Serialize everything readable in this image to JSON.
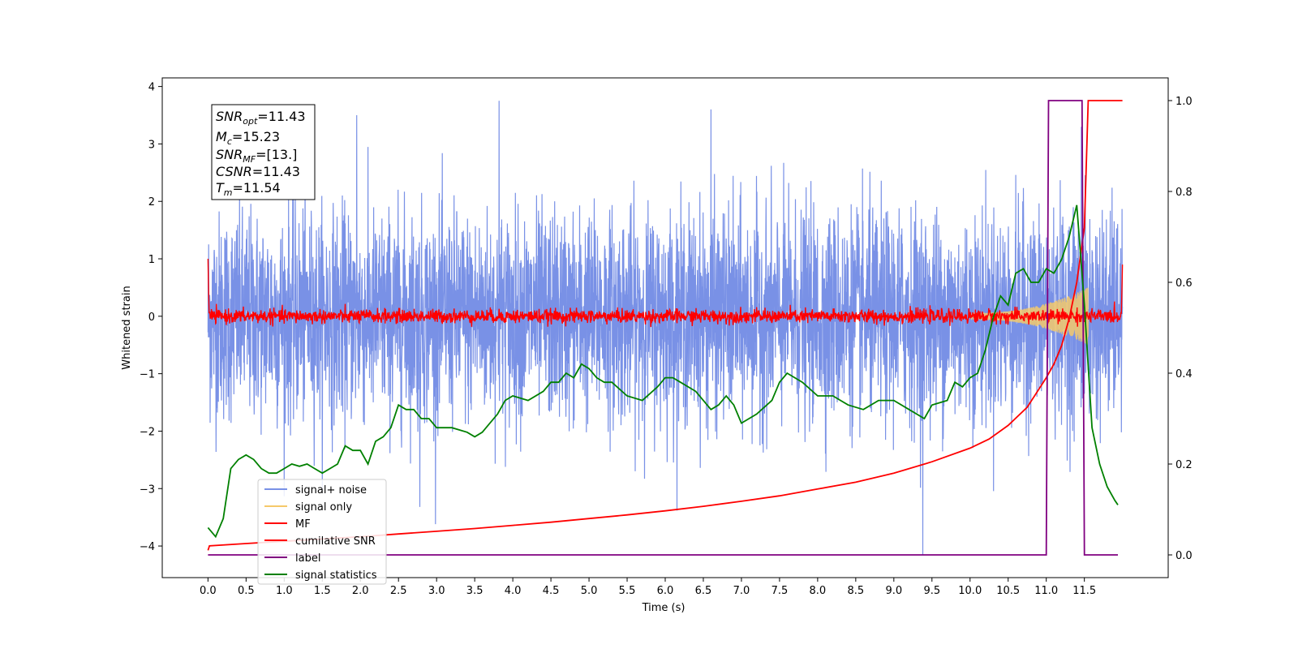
{
  "chart_data": {
    "type": "line",
    "xlabel": "Time (s)",
    "ylabel": "Whitened strain",
    "xlim": [
      -0.6,
      12.6
    ],
    "ylim": [
      -4.55,
      4.15
    ],
    "y2lim": [
      -0.05,
      1.05
    ],
    "xticks": [
      "0.0",
      "0.5",
      "1.0",
      "1.5",
      "2.0",
      "2.5",
      "3.0",
      "3.5",
      "4.0",
      "4.5",
      "5.0",
      "5.5",
      "6.0",
      "6.5",
      "7.0",
      "7.5",
      "8.0",
      "8.5",
      "9.0",
      "9.5",
      "10.0",
      "10.5",
      "11.0",
      "11.5"
    ],
    "xtick_values": [
      0.0,
      0.5,
      1.0,
      1.5,
      2.0,
      2.5,
      3.0,
      3.5,
      4.0,
      4.5,
      5.0,
      5.5,
      6.0,
      6.5,
      7.0,
      7.5,
      8.0,
      8.5,
      9.0,
      9.5,
      10.0,
      10.5,
      11.0,
      11.5
    ],
    "yticks": [
      "4",
      "3",
      "2",
      "1",
      "0",
      "−1",
      "−2",
      "−3",
      "−4"
    ],
    "ytick_values": [
      4,
      3,
      2,
      1,
      0,
      -1,
      -2,
      -3,
      -4
    ],
    "y2ticks": [
      "1.0",
      "0.8",
      "0.6",
      "0.4",
      "0.2",
      "0.0"
    ],
    "y2tick_values": [
      1.0,
      0.8,
      0.6,
      0.4,
      0.2,
      0.0
    ],
    "legend_position": "lower-left",
    "grid": false,
    "stats_box": {
      "snr_opt": "=11.43",
      "mc": "=15.23",
      "snr_mf": "=[13.]",
      "csnr": "=11.43",
      "tm": "=11.54"
    },
    "series": [
      {
        "name": "signal+ noise",
        "color": "#7991e6",
        "axis": "left",
        "style": "noise",
        "x_range": [
          0.0,
          12.0
        ],
        "envelope_typical": 1.5,
        "envelope_peak": 3.75,
        "spikes": [
          [
            3.82,
            3.75
          ],
          [
            9.38,
            -4.15
          ],
          [
            2.78,
            -3.32
          ],
          [
            11.46,
            3.3
          ],
          [
            1.95,
            3.5
          ],
          [
            6.6,
            3.6
          ]
        ]
      },
      {
        "name": "signal only",
        "color": "#f5c96a",
        "axis": "left",
        "style": "chirp",
        "x_range": [
          10.0,
          11.55
        ],
        "amplitude_max": 0.45
      },
      {
        "name": "MF",
        "color": "#ff0000",
        "axis": "left",
        "style": "mf",
        "x_range": [
          0.0,
          12.0
        ],
        "baseline": 0.0,
        "noise_amplitude": 0.12,
        "end_values": [
          1.0,
          0.9
        ]
      },
      {
        "name": "cumilative SNR",
        "color": "#ff0000",
        "axis": "right",
        "x": [
          0.0,
          0.02,
          0.5,
          1.0,
          1.5,
          2.0,
          2.5,
          3.0,
          3.5,
          4.0,
          4.5,
          5.0,
          5.5,
          6.0,
          6.5,
          7.0,
          7.5,
          8.0,
          8.5,
          9.0,
          9.5,
          10.0,
          10.25,
          10.5,
          10.75,
          11.0,
          11.1,
          11.2,
          11.3,
          11.4,
          11.5,
          11.55,
          12.0
        ],
        "values": [
          0.01,
          0.02,
          0.025,
          0.03,
          0.035,
          0.04,
          0.046,
          0.052,
          0.058,
          0.065,
          0.072,
          0.08,
          0.088,
          0.097,
          0.107,
          0.118,
          0.13,
          0.145,
          0.16,
          0.18,
          0.205,
          0.235,
          0.255,
          0.285,
          0.325,
          0.39,
          0.42,
          0.46,
          0.52,
          0.6,
          0.72,
          1.0,
          1.0
        ]
      },
      {
        "name": "label",
        "color": "#800080",
        "axis": "right",
        "x": [
          0.0,
          11.0,
          11.03,
          11.47,
          11.5,
          11.94
        ],
        "values": [
          0.0,
          0.0,
          1.0,
          1.0,
          0.0,
          0.0
        ]
      },
      {
        "name": "signal statistics",
        "color": "#008000",
        "axis": "right",
        "x": [
          0.0,
          0.1,
          0.2,
          0.3,
          0.4,
          0.5,
          0.6,
          0.7,
          0.8,
          0.9,
          1.0,
          1.1,
          1.2,
          1.3,
          1.4,
          1.5,
          1.6,
          1.7,
          1.8,
          1.9,
          2.0,
          2.1,
          2.2,
          2.3,
          2.4,
          2.5,
          2.6,
          2.7,
          2.8,
          2.9,
          3.0,
          3.2,
          3.4,
          3.5,
          3.6,
          3.7,
          3.8,
          3.9,
          4.0,
          4.2,
          4.4,
          4.5,
          4.6,
          4.7,
          4.8,
          4.9,
          5.0,
          5.1,
          5.2,
          5.3,
          5.5,
          5.7,
          5.9,
          6.0,
          6.1,
          6.2,
          6.4,
          6.6,
          6.7,
          6.8,
          6.9,
          7.0,
          7.2,
          7.4,
          7.5,
          7.6,
          7.7,
          7.8,
          8.0,
          8.2,
          8.3,
          8.4,
          8.6,
          8.8,
          9.0,
          9.2,
          9.4,
          9.5,
          9.7,
          9.8,
          9.9,
          10.0,
          10.1,
          10.2,
          10.3,
          10.4,
          10.5,
          10.6,
          10.7,
          10.8,
          10.9,
          11.0,
          11.1,
          11.2,
          11.3,
          11.4,
          11.5,
          11.6,
          11.7,
          11.8,
          11.9,
          11.94
        ],
        "values": [
          0.06,
          0.04,
          0.08,
          0.19,
          0.21,
          0.22,
          0.21,
          0.19,
          0.18,
          0.18,
          0.19,
          0.2,
          0.195,
          0.2,
          0.19,
          0.18,
          0.19,
          0.2,
          0.24,
          0.23,
          0.23,
          0.2,
          0.25,
          0.26,
          0.28,
          0.33,
          0.32,
          0.32,
          0.3,
          0.3,
          0.28,
          0.28,
          0.27,
          0.26,
          0.27,
          0.29,
          0.31,
          0.34,
          0.35,
          0.34,
          0.36,
          0.38,
          0.38,
          0.4,
          0.39,
          0.42,
          0.41,
          0.39,
          0.38,
          0.38,
          0.35,
          0.34,
          0.37,
          0.39,
          0.39,
          0.38,
          0.36,
          0.32,
          0.33,
          0.35,
          0.33,
          0.29,
          0.31,
          0.34,
          0.38,
          0.4,
          0.39,
          0.38,
          0.35,
          0.35,
          0.34,
          0.33,
          0.32,
          0.34,
          0.34,
          0.32,
          0.3,
          0.33,
          0.34,
          0.38,
          0.37,
          0.39,
          0.4,
          0.45,
          0.52,
          0.57,
          0.55,
          0.62,
          0.63,
          0.6,
          0.6,
          0.63,
          0.62,
          0.65,
          0.7,
          0.77,
          0.55,
          0.28,
          0.2,
          0.15,
          0.12,
          0.11
        ]
      }
    ]
  }
}
